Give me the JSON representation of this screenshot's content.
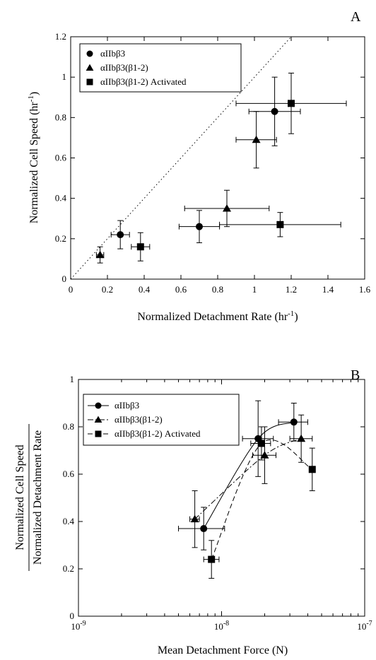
{
  "chart_data": [
    {
      "type": "scatter",
      "panel_label": "A",
      "xlabel": "Normalized Detachment Rate (hr",
      "xlabel_sup": "-1",
      "xlabel_end": ")",
      "ylabel": "Normalized Cell Speed (hr",
      "ylabel_sup": "-1",
      "ylabel_end": ")",
      "xlim": [
        0,
        1.6
      ],
      "ylim": [
        0,
        1.2
      ],
      "x_ticks": [
        0,
        0.2,
        0.4,
        0.6,
        0.8,
        1,
        1.2,
        1.4,
        1.6
      ],
      "x_tick_labels": [
        "0",
        "0.2",
        "0.4",
        "0.6",
        "0.8",
        "1",
        "1.2",
        "1.4",
        "1.6"
      ],
      "y_ticks": [
        0,
        0.2,
        0.4,
        0.6,
        0.8,
        1,
        1.2
      ],
      "y_tick_labels": [
        "0",
        "0.2",
        "0.4",
        "0.6",
        "0.8",
        "1",
        "1.2"
      ],
      "reference_line": {
        "style": "dotted",
        "x": [
          0,
          1.2
        ],
        "y": [
          0,
          1.2
        ]
      },
      "legend_position": "top-left",
      "series": [
        {
          "name": "αIIbβ3",
          "marker": "circle",
          "points": [
            {
              "x": 0.27,
              "y": 0.22,
              "xerr": 0.05,
              "yerr": 0.07
            },
            {
              "x": 0.7,
              "y": 0.26,
              "xerr": 0.11,
              "yerr": 0.08
            },
            {
              "x": 1.11,
              "y": 0.83,
              "xerr": 0.14,
              "yerr": 0.17
            }
          ]
        },
        {
          "name": "αIIbβ3(β1-2)",
          "marker": "triangle",
          "points": [
            {
              "x": 0.16,
              "y": 0.12,
              "xerr": 0.02,
              "yerr": 0.04
            },
            {
              "x": 0.85,
              "y": 0.35,
              "xerr": 0.23,
              "yerr": 0.09
            },
            {
              "x": 1.01,
              "y": 0.69,
              "xerr": 0.11,
              "yerr": 0.14
            }
          ]
        },
        {
          "name": "αIIbβ3(β1-2) Activated",
          "marker": "square",
          "points": [
            {
              "x": 0.38,
              "y": 0.16,
              "xerr": 0.05,
              "yerr": 0.07
            },
            {
              "x": 1.14,
              "y": 0.27,
              "xerr": 0.33,
              "yerr": 0.06
            },
            {
              "x": 1.2,
              "y": 0.87,
              "xerr": 0.3,
              "yerr": 0.15
            }
          ]
        }
      ]
    },
    {
      "type": "scatter",
      "panel_label": "B",
      "x_scale": "log",
      "xlabel": "Mean Detachment Force (N)",
      "ylabel_numerator": "Normalized Cell Speed",
      "ylabel_denominator": "Normalized Detachment Rate",
      "xlim": [
        1e-09,
        1e-07
      ],
      "ylim": [
        0,
        1
      ],
      "x_ticks": [
        1e-09,
        1e-08,
        1e-07
      ],
      "x_tick_labels": [
        {
          "base": "10",
          "exp": "-9"
        },
        {
          "base": "10",
          "exp": "-8"
        },
        {
          "base": "10",
          "exp": "-7"
        }
      ],
      "y_ticks": [
        0,
        0.2,
        0.4,
        0.6,
        0.8,
        1
      ],
      "y_tick_labels": [
        "0",
        "0.2",
        "0.4",
        "0.6",
        "0.8",
        "1"
      ],
      "legend_position": "top-left",
      "series": [
        {
          "name": "αIIbβ3",
          "marker": "circle",
          "line": "solid",
          "points": [
            {
              "x": 7.5e-09,
              "y": 0.37,
              "xlo": 5e-09,
              "xhi": 1.05e-08,
              "yerr": 0.09
            },
            {
              "x": 1.8e-08,
              "y": 0.75,
              "xlo": 1.4e-08,
              "xhi": 2.3e-08,
              "yerr": 0.16
            },
            {
              "x": 3.2e-08,
              "y": 0.82,
              "xlo": 2.5e-08,
              "xhi": 4e-08,
              "yerr": 0.08
            }
          ]
        },
        {
          "name": "αIIbβ3(β1-2)",
          "marker": "triangle",
          "line": "dash-dot",
          "points": [
            {
              "x": 6.5e-09,
              "y": 0.41,
              "xlo": 6e-09,
              "xhi": 7e-09,
              "yerr": 0.12
            },
            {
              "x": 2e-08,
              "y": 0.68,
              "xlo": 1.65e-08,
              "xhi": 2.4e-08,
              "yerr": 0.12
            },
            {
              "x": 3.6e-08,
              "y": 0.75,
              "xlo": 3e-08,
              "xhi": 4.3e-08,
              "yerr": 0.1
            }
          ]
        },
        {
          "name": "αIIbβ3(β1-2) Activated",
          "marker": "square",
          "line": "dashed",
          "points": [
            {
              "x": 8.5e-09,
              "y": 0.24,
              "xlo": 7.5e-09,
              "xhi": 9.6e-09,
              "yerr": 0.08
            },
            {
              "x": 1.9e-08,
              "y": 0.73,
              "xlo": 1.6e-08,
              "xhi": 2.2e-08,
              "yerr": 0.07
            },
            {
              "x": 4.3e-08,
              "y": 0.62,
              "xlo": 4.2e-08,
              "xhi": 4.4e-08,
              "yerr": 0.09
            }
          ]
        }
      ]
    }
  ]
}
